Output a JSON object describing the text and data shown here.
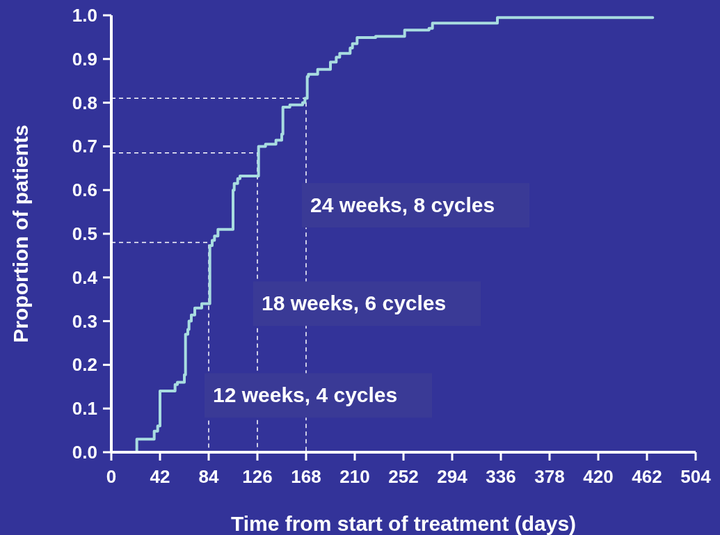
{
  "chart_data": {
    "type": "step",
    "xlabel": "Time from start of treatment (days)",
    "ylabel": "Proportion of patients",
    "xlim": [
      0,
      504
    ],
    "xticks": [
      0,
      42,
      84,
      126,
      168,
      210,
      252,
      294,
      336,
      378,
      420,
      462,
      504
    ],
    "ylim": [
      0,
      1
    ],
    "yticks": [
      {
        "value": 0,
        "label": "0.0"
      },
      {
        "value": 0.1,
        "label": "0.1"
      },
      {
        "value": 0.2,
        "label": "0.2"
      },
      {
        "value": 0.3,
        "label": "0.3"
      },
      {
        "value": 0.4,
        "label": "0.4"
      },
      {
        "value": 0.5,
        "label": "0.5"
      },
      {
        "value": 0.6,
        "label": "0.6"
      },
      {
        "value": 0.7,
        "label": "0.7"
      },
      {
        "value": 0.8,
        "label": "0.8"
      },
      {
        "value": 0.9,
        "label": "0.9"
      },
      {
        "value": 1,
        "label": "1.0"
      }
    ],
    "series": [
      {
        "color": "#a8dce0",
        "x": [
          21,
          22,
          37,
          40,
          42,
          55,
          57,
          63,
          64,
          66,
          67,
          69,
          72,
          78,
          85,
          87,
          89,
          92,
          105,
          106,
          109,
          111,
          127,
          133,
          142,
          147,
          148,
          154,
          165,
          167,
          169,
          170,
          178,
          189,
          194,
          197,
          206,
          208,
          212,
          228,
          253,
          274,
          277,
          333,
          467
        ],
        "values": [
          0,
          0.03,
          0.048,
          0.06,
          0.14,
          0.155,
          0.16,
          0.177,
          0.27,
          0.281,
          0.3,
          0.314,
          0.33,
          0.34,
          0.473,
          0.485,
          0.495,
          0.51,
          0.6,
          0.615,
          0.626,
          0.632,
          0.7,
          0.705,
          0.714,
          0.728,
          0.79,
          0.795,
          0.8,
          0.81,
          0.86,
          0.865,
          0.876,
          0.893,
          0.904,
          0.913,
          0.925,
          0.935,
          0.949,
          0.952,
          0.966,
          0.97,
          0.982,
          0.995,
          0.995
        ]
      },
      {
        "type": "line",
        "color": "#ffffff",
        "line_style": "dashed",
        "x": [
          0,
          84,
          84
        ],
        "values": [
          0.48,
          0.48,
          0
        ]
      },
      {
        "type": "line",
        "color": "#ffffff",
        "line_style": "dashed",
        "x": [
          0,
          126,
          126
        ],
        "values": [
          0.685,
          0.685,
          0
        ]
      },
      {
        "type": "line",
        "color": "#ffffff",
        "line_style": "dashed",
        "x": [
          0,
          168,
          168
        ],
        "values": [
          0.81,
          0.81,
          0
        ]
      }
    ],
    "annotations": [
      {
        "text": "12 weeks, 4 cycles",
        "x": 84,
        "y": 0.13
      },
      {
        "text": "18 weeks, 6 cycles",
        "x": 126,
        "y": 0.34
      },
      {
        "text": "24 weeks, 8 cycles",
        "x": 168,
        "y": 0.565
      }
    ]
  }
}
